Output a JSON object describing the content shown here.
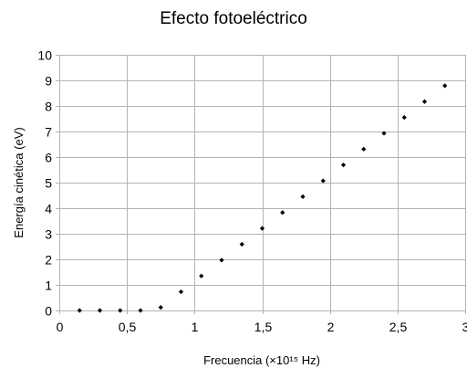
{
  "chart_data": {
    "type": "scatter",
    "title": "Efecto fotoeléctrico",
    "xlabel": "Frecuencia (×10¹⁵ Hz)",
    "ylabel": "Energía cinética (eV)",
    "xlim": [
      0,
      3
    ],
    "ylim": [
      0,
      10
    ],
    "x_ticks": [
      0,
      0.5,
      1,
      1.5,
      2,
      2.5,
      3
    ],
    "x_tick_labels": [
      "0",
      "0,5",
      "1",
      "1,5",
      "2",
      "2,5",
      "3"
    ],
    "y_ticks": [
      0,
      1,
      2,
      3,
      4,
      5,
      6,
      7,
      8,
      9,
      10
    ],
    "y_tick_labels": [
      "0",
      "1",
      "2",
      "3",
      "4",
      "5",
      "6",
      "7",
      "8",
      "9",
      "10"
    ],
    "grid": true,
    "legend": "none",
    "colors": {
      "points": "#000000",
      "grid": "#b3b3b3",
      "axis": "#b3b3b3"
    },
    "points": [
      {
        "x": 0.15,
        "y": 0.0
      },
      {
        "x": 0.3,
        "y": 0.0
      },
      {
        "x": 0.45,
        "y": 0.0
      },
      {
        "x": 0.6,
        "y": 0.0
      },
      {
        "x": 0.75,
        "y": 0.12
      },
      {
        "x": 0.9,
        "y": 0.73
      },
      {
        "x": 1.05,
        "y": 1.35
      },
      {
        "x": 1.2,
        "y": 1.97
      },
      {
        "x": 1.35,
        "y": 2.59
      },
      {
        "x": 1.5,
        "y": 3.21
      },
      {
        "x": 1.65,
        "y": 3.83
      },
      {
        "x": 1.8,
        "y": 4.45
      },
      {
        "x": 1.95,
        "y": 5.07
      },
      {
        "x": 2.1,
        "y": 5.69
      },
      {
        "x": 2.25,
        "y": 6.31
      },
      {
        "x": 2.4,
        "y": 6.93
      },
      {
        "x": 2.55,
        "y": 7.55
      },
      {
        "x": 2.7,
        "y": 8.17
      },
      {
        "x": 2.85,
        "y": 8.79
      }
    ]
  }
}
